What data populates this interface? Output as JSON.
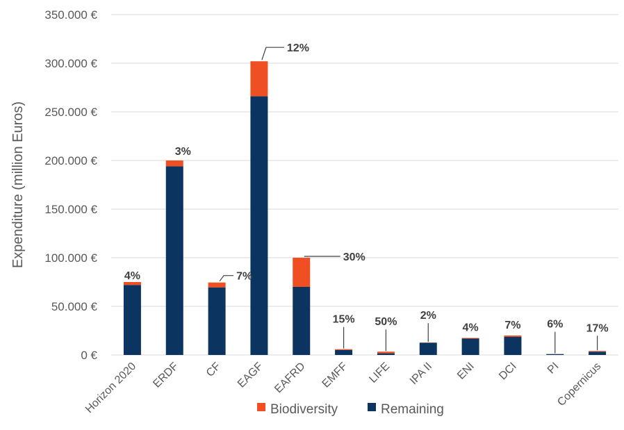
{
  "chart_data": {
    "type": "bar",
    "stacked": true,
    "title": "",
    "xlabel": "",
    "ylabel": "Expenditure (million Euros)",
    "ylim": [
      0,
      350000
    ],
    "yticks": [
      0,
      50000,
      100000,
      150000,
      200000,
      250000,
      300000,
      350000
    ],
    "ytick_labels": [
      "0 €",
      "50.000 €",
      "100.000 €",
      "150.000 €",
      "200.000 €",
      "250.000 €",
      "300.000 €",
      "350.000 €"
    ],
    "grid": true,
    "legend_position": "bottom",
    "categories": [
      "Horizon 2020",
      "ERDF",
      "CF",
      "EAGF",
      "EAFRD",
      "EMFF",
      "LIFE",
      "IPA II",
      "ENI",
      "DCI",
      "PI",
      "Copernicus"
    ],
    "series": [
      {
        "name": "Biodiversity",
        "color": "#f04e23",
        "values": [
          3000,
          6000,
          5000,
          36000,
          30000,
          900,
          1700,
          250,
          700,
          1400,
          60,
          700
        ]
      },
      {
        "name": "Remaining",
        "color": "#0b3560",
        "values": [
          72000,
          194000,
          69500,
          266000,
          70000,
          5000,
          1700,
          12500,
          16800,
          18600,
          940,
          3400
        ]
      }
    ],
    "data_labels": [
      "4%",
      "3%",
      "7%",
      "12%",
      "30%",
      "15%",
      "50%",
      "2%",
      "4%",
      "7%",
      "6%",
      "17%"
    ]
  }
}
